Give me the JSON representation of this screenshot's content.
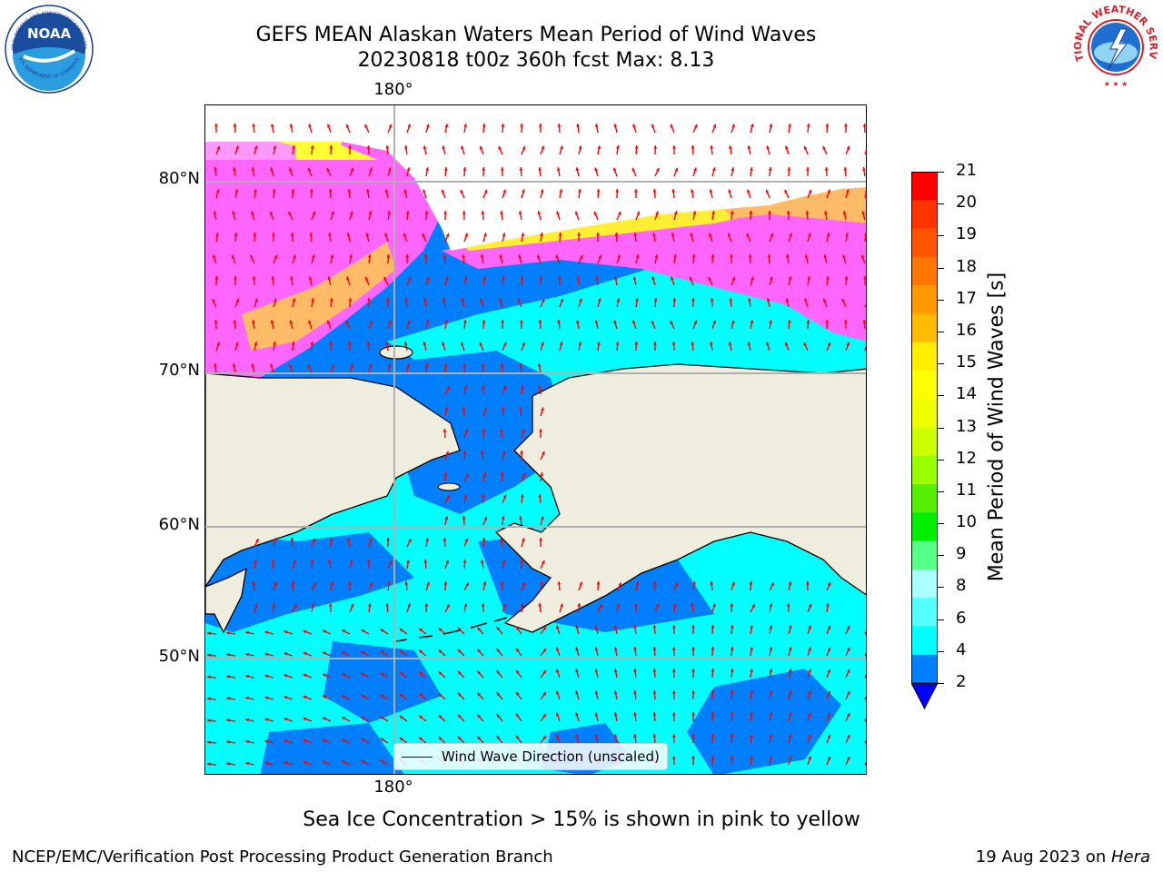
{
  "title": {
    "line1": "GEFS MEAN Alaskan Waters Mean Period of Wind Waves",
    "line2": "20230818 t00z 360h fcst   Max: 8.13"
  },
  "map": {
    "lon_label_top": "180°",
    "lon_label_bottom": "180°",
    "lat_labels": [
      "80°N",
      "70°N",
      "60°N",
      "50°N"
    ],
    "legend_label": "Wind Wave Direction (unscaled)",
    "colors": {
      "ocean_low": "#0080ff",
      "ocean_mid": "#00ffff",
      "land": "#efedde",
      "ice_pink": "#ff66ff",
      "ice_yellow": "#ffff33",
      "arrows": "#ff0000"
    }
  },
  "colorbar": {
    "label": "Mean Period of Wind Waves [s]",
    "ticks": [
      "21",
      "20",
      "19",
      "18",
      "17",
      "16",
      "15",
      "14",
      "13",
      "12",
      "11",
      "10",
      "9",
      "8",
      "6",
      "4",
      "2"
    ],
    "colors": [
      "#ff0000",
      "#ff3300",
      "#ff5500",
      "#ff7700",
      "#ff9900",
      "#ffbb00",
      "#ffee00",
      "#ffff00",
      "#eeff00",
      "#ccff00",
      "#99ff00",
      "#55ee00",
      "#00ee00",
      "#55ff88",
      "#aaffff",
      "#55ffff",
      "#00ffff",
      "#0080ff"
    ],
    "under_color": "#0000ff"
  },
  "caption": "Sea Ice Concentration > 15% is shown in pink to yellow",
  "footer": {
    "left": "NCEP/EMC/Verification Post Processing Product Generation Branch",
    "right_prefix": "19 Aug 2023 on ",
    "right_host": "Hera"
  },
  "logos": {
    "noaa_text": "NOAA",
    "noaa_ring_top": "NATIONAL OCEANIC AND ATMOSPHERIC ADMINISTRATION",
    "noaa_ring_bottom": "U.S. DEPARTMENT OF COMMERCE",
    "nws_ring": "NATIONAL WEATHER SERVICE"
  }
}
